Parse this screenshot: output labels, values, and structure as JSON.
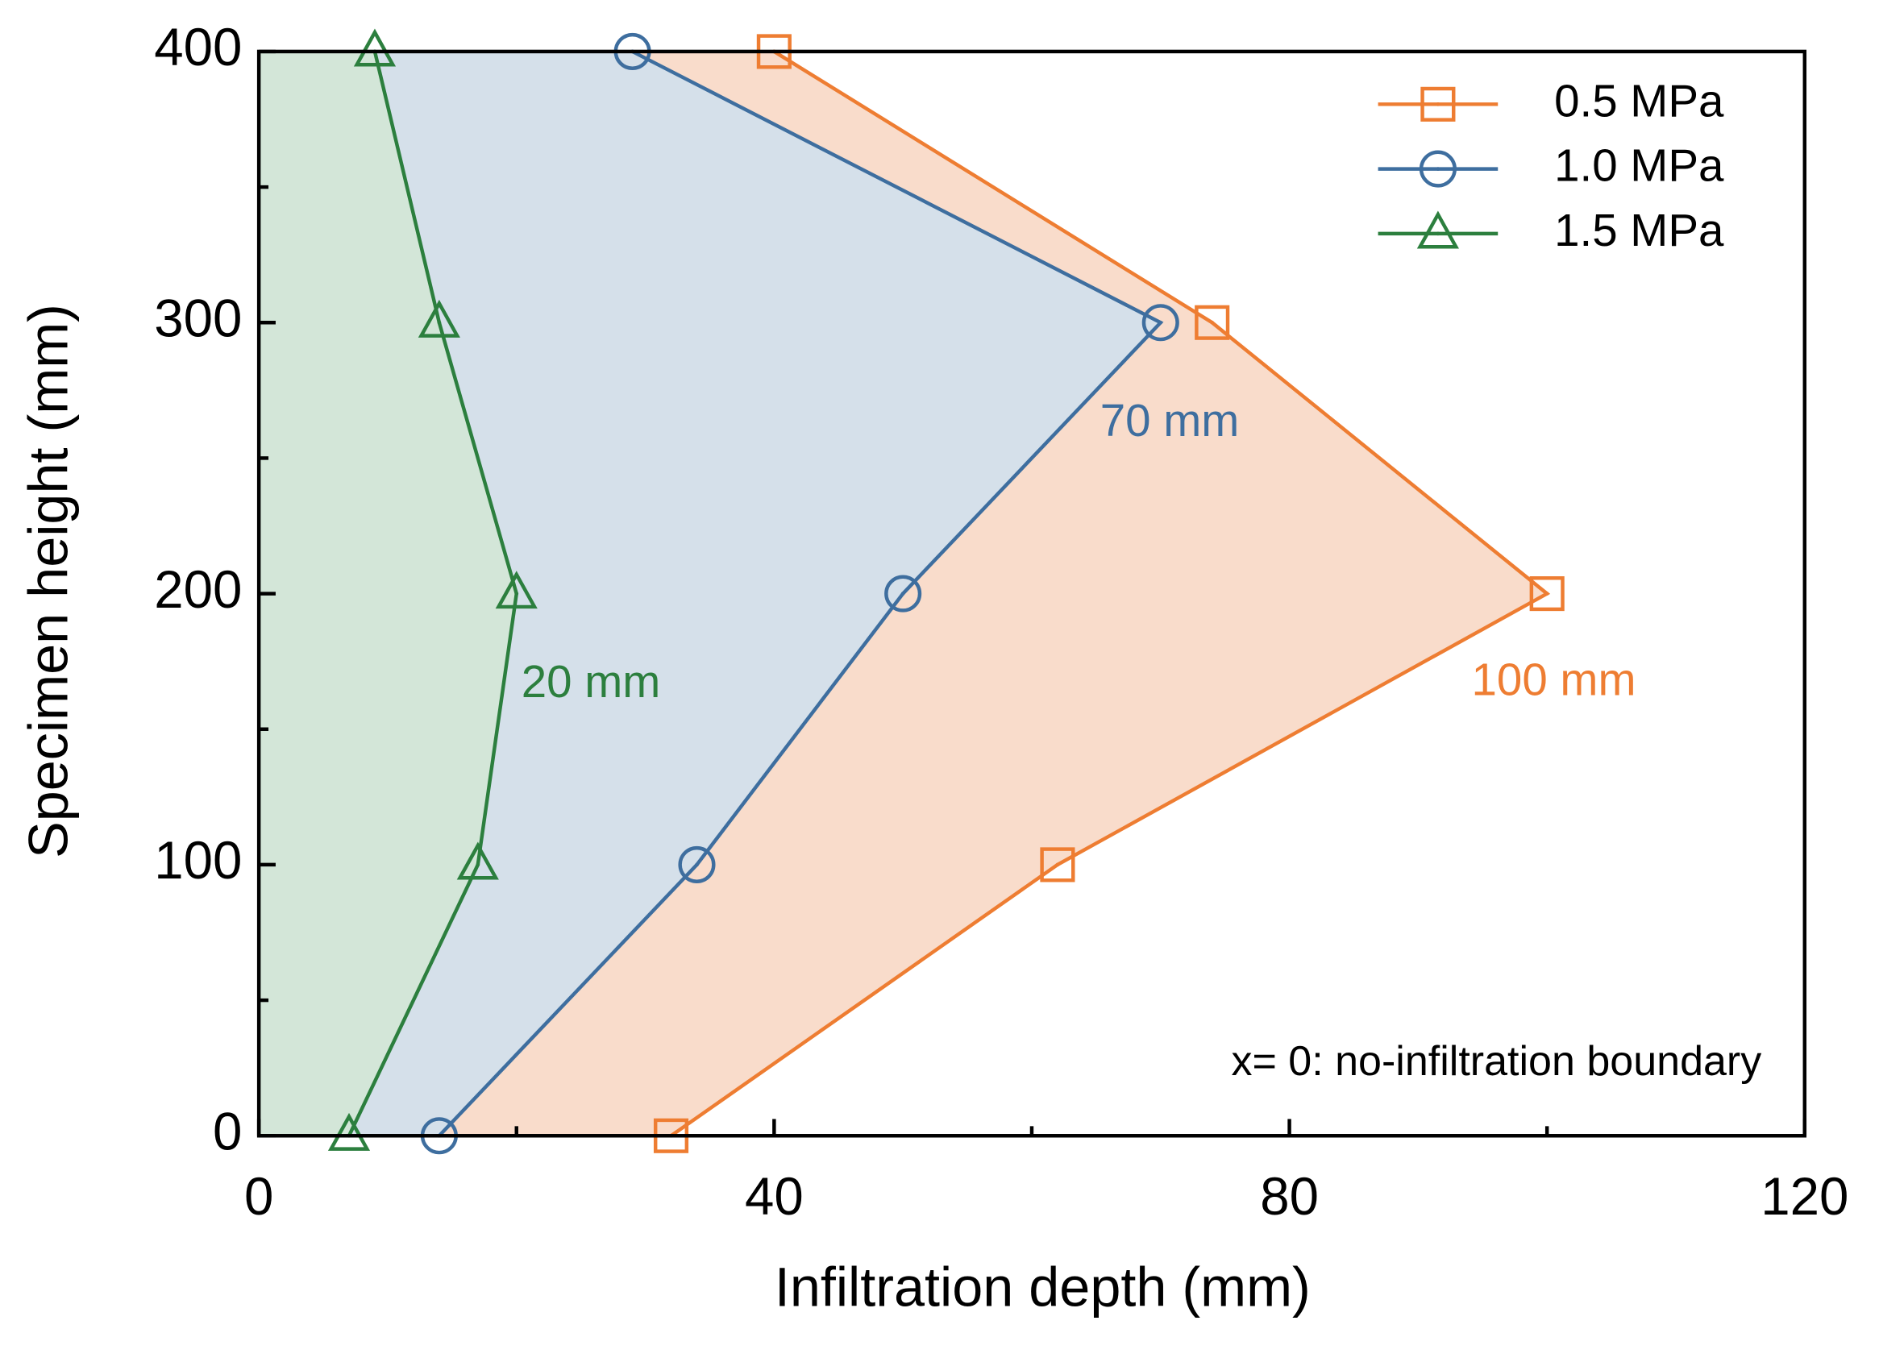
{
  "chart_data": {
    "type": "line",
    "x_label": "Infiltration depth (mm)",
    "y_label": "Specimen height (mm)",
    "y": [
      0,
      100,
      200,
      300,
      400
    ],
    "series": [
      {
        "name": "0.5 MPa",
        "color": "#ee7d32",
        "fill": "#f9dccb",
        "marker": "square",
        "values": [
          32,
          62,
          100,
          74,
          40
        ]
      },
      {
        "name": "1.0 MPa",
        "color": "#3e6e9f",
        "fill": "#d5e0ea",
        "marker": "circle",
        "values": [
          14,
          34,
          50,
          70,
          29
        ]
      },
      {
        "name": "1.5 MPa",
        "color": "#2c7f3e",
        "fill": "#d3e6d8",
        "marker": "triangle",
        "values": [
          7,
          17,
          20,
          14,
          9
        ]
      }
    ],
    "annotations": [
      {
        "text": "100 mm",
        "color": "#ee7d32"
      },
      {
        "text": "70 mm",
        "color": "#3e6e9f"
      },
      {
        "text": "20 mm",
        "color": "#2c7f3e"
      },
      {
        "text": "x= 0: no-infiltration boundary",
        "color": "#000000"
      }
    ],
    "xlim": [
      0,
      120
    ],
    "xticks": [
      0,
      40,
      80,
      120
    ],
    "xminorticks": [
      20,
      60,
      100
    ],
    "ylim": [
      0,
      400
    ],
    "yticks": [
      0,
      100,
      200,
      300,
      400
    ],
    "yminorticks": [
      50,
      150,
      250,
      350
    ],
    "legend": "upper right"
  }
}
